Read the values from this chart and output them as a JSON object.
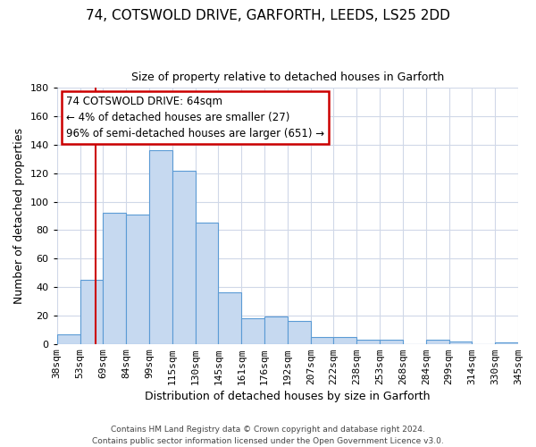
{
  "title_line1": "74, COTSWOLD DRIVE, GARFORTH, LEEDS, LS25 2DD",
  "title_line2": "Size of property relative to detached houses in Garforth",
  "xlabel": "Distribution of detached houses by size in Garforth",
  "ylabel": "Number of detached properties",
  "bin_labels": [
    "38sqm",
    "53sqm",
    "69sqm",
    "84sqm",
    "99sqm",
    "115sqm",
    "130sqm",
    "145sqm",
    "161sqm",
    "176sqm",
    "192sqm",
    "207sqm",
    "222sqm",
    "238sqm",
    "253sqm",
    "268sqm",
    "284sqm",
    "299sqm",
    "314sqm",
    "330sqm",
    "345sqm"
  ],
  "bar_heights": [
    7,
    45,
    92,
    91,
    136,
    122,
    85,
    36,
    18,
    19,
    16,
    5,
    5,
    3,
    3,
    0,
    3,
    2,
    0,
    1
  ],
  "bar_color": "#c6d9f0",
  "bar_edge_color": "#5b9bd5",
  "ylim": [
    0,
    180
  ],
  "yticks": [
    0,
    20,
    40,
    60,
    80,
    100,
    120,
    140,
    160,
    180
  ],
  "annotation_title": "74 COTSWOLD DRIVE: 64sqm",
  "annotation_line1": "← 4% of detached houses are smaller (27)",
  "annotation_line2": "96% of semi-detached houses are larger (651) →",
  "annotation_box_color": "#ffffff",
  "annotation_box_edge": "#cc0000",
  "vline_color": "#cc0000",
  "footer_line1": "Contains HM Land Registry data © Crown copyright and database right 2024.",
  "footer_line2": "Contains public sector information licensed under the Open Government Licence v3.0.",
  "background_color": "#ffffff",
  "grid_color": "#d0d8e8",
  "title_fontsize": 11,
  "subtitle_fontsize": 9,
  "ylabel_fontsize": 9,
  "xlabel_fontsize": 9,
  "tick_fontsize": 8,
  "annot_fontsize": 8.5,
  "footer_fontsize": 6.5
}
